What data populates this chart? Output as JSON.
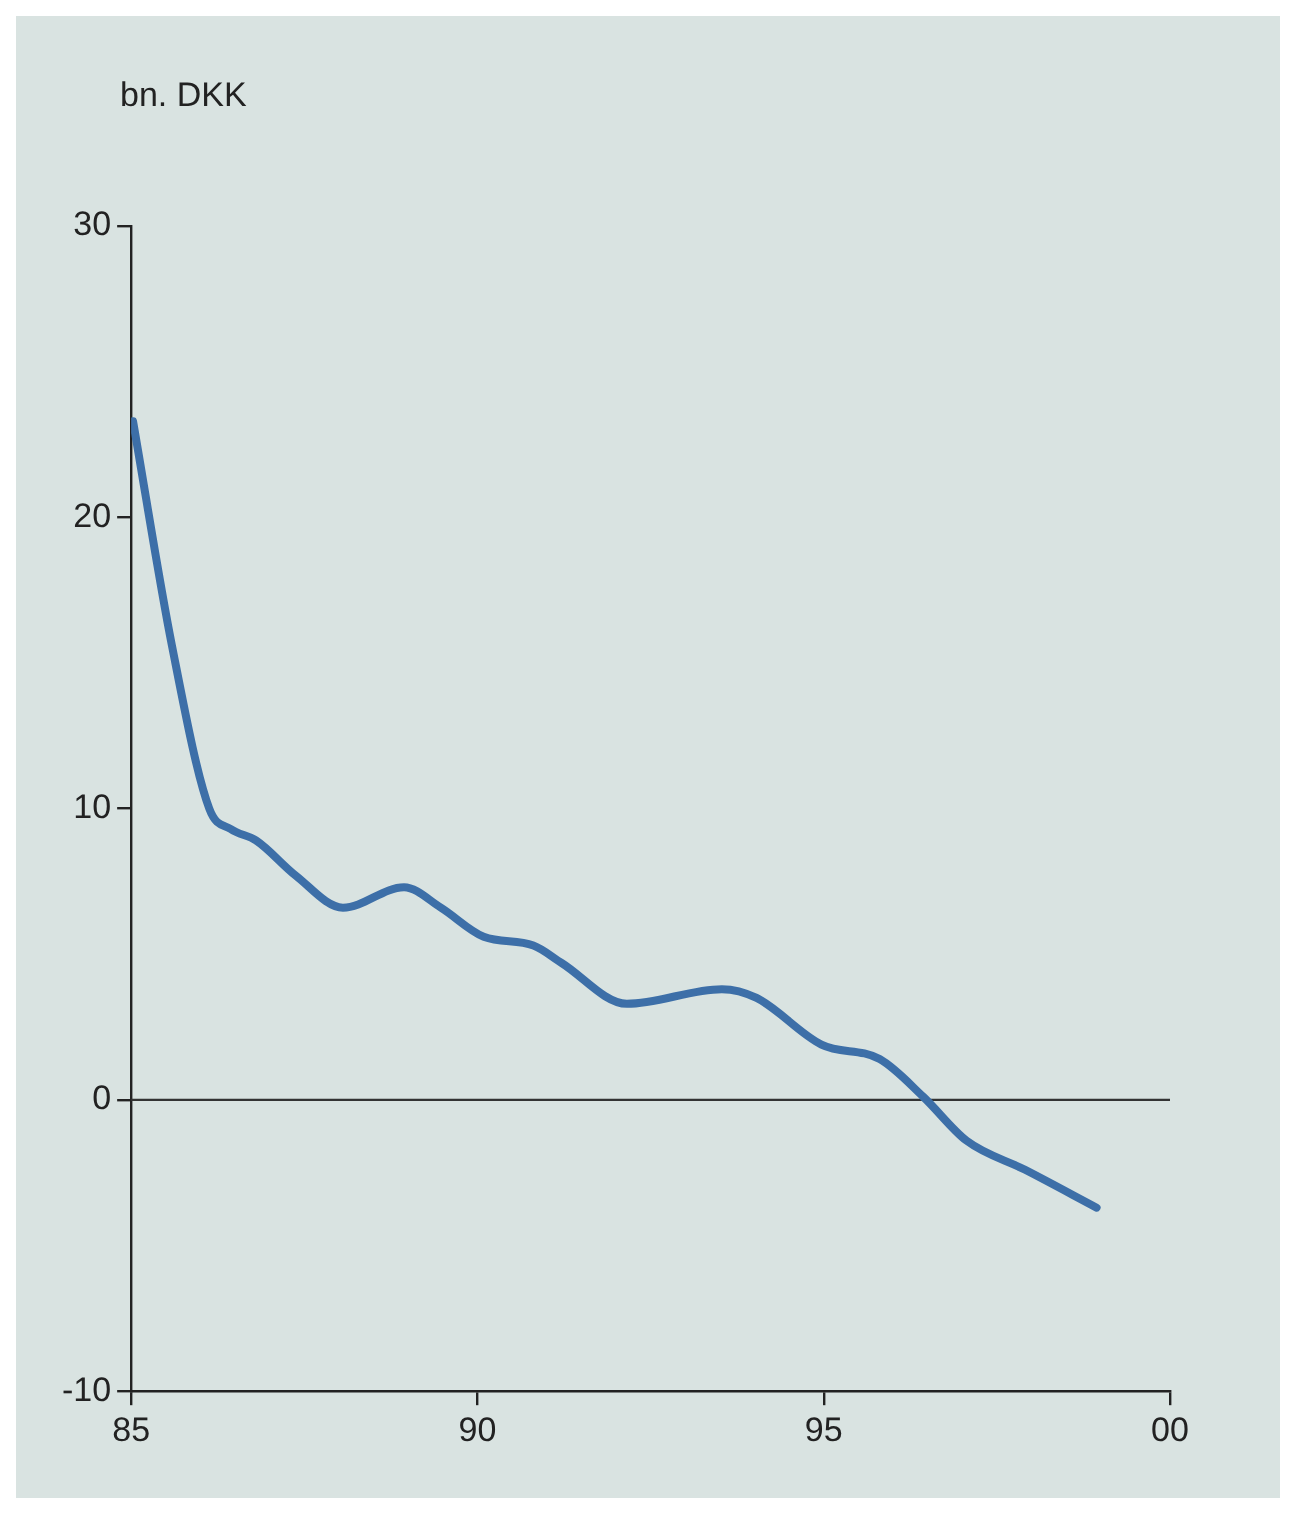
{
  "chart_data": {
    "type": "line",
    "ylabel": "bn. DKK",
    "x": [
      "1985-01-11",
      "1985-08-04",
      "1986-02-17",
      "1986-06-10",
      "1986-10-23",
      "1987-05-19",
      "1988-01-23",
      "1988-12-10",
      "1989-06-22",
      "1990-02-03",
      "1990-10-23",
      "1991-03-21",
      "1992-02-28",
      "1993-07-13",
      "1994-01-12",
      "1994-12-20",
      "1995-10-23",
      "1996-06-10",
      "1997-01-23",
      "1997-11-28",
      "1998-12-10"
    ],
    "series": [
      {
        "color": "#3d6fa8",
        "values": [
          23.3,
          15.6,
          10.0,
          9.3,
          8.9,
          7.7,
          6.6,
          7.3,
          6.6,
          5.6,
          5.3,
          4.7,
          3.3,
          3.8,
          3.5,
          1.9,
          1.4,
          0.1,
          -1.4,
          -2.4,
          -3.7
        ]
      }
    ],
    "xlim": [
      "1985",
      "2000"
    ],
    "xticks": [
      {
        "value": "1985",
        "label": "85"
      },
      {
        "value": "1990",
        "label": "90"
      },
      {
        "value": "1995",
        "label": "95"
      },
      {
        "value": "2000",
        "label": "00"
      }
    ],
    "ylim": [
      -10,
      30
    ],
    "yticks": [
      -10,
      0,
      10,
      20,
      30
    ],
    "ref_lines": [
      {
        "axis": "y",
        "value": 0,
        "color": "#333333"
      }
    ],
    "legend": false,
    "marker": "none",
    "line_style": "solid"
  }
}
